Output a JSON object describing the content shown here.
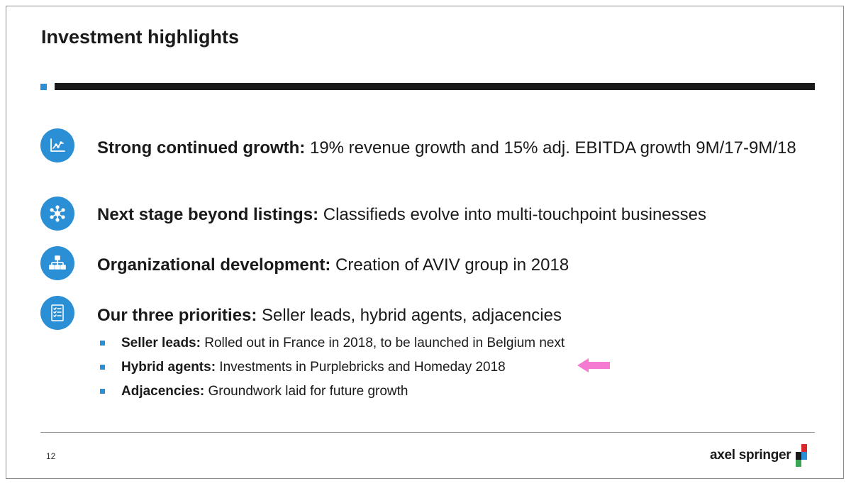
{
  "slide": {
    "title": "Investment highlights",
    "page_number": "12",
    "brand": "axel springer"
  },
  "colors": {
    "accent_blue": "#2b8fd6",
    "rule": "#1a1a1a",
    "arrow": "#f57ad2",
    "logo_red": "#d9272e",
    "logo_green": "#3aa655",
    "logo_blue": "#2b8fd6",
    "logo_black": "#1a1a1a"
  },
  "highlights": [
    {
      "icon": "growth-chart-icon",
      "lead": "Strong continued growth:",
      "text": " 19% revenue growth and 15% adj. EBITDA growth 9M/17-9M/18"
    },
    {
      "icon": "network-nodes-icon",
      "lead": "Next stage beyond listings:",
      "text": " Classifieds evolve into multi-touchpoint businesses"
    },
    {
      "icon": "org-chart-icon",
      "lead": "Organizational development:",
      "text": " Creation of AVIV group in 2018"
    },
    {
      "icon": "checklist-icon",
      "lead": "Our three priorities:",
      "text": " Seller leads, hybrid agents, adjacencies"
    }
  ],
  "priorities": [
    {
      "lead": "Seller leads:",
      "text": " Rolled out in France in 2018, to be launched in Belgium next"
    },
    {
      "lead": "Hybrid agents:",
      "text": " Investments in Purplebricks and Homeday 2018"
    },
    {
      "lead": "Adjacencies:",
      "text": " Groundwork laid for future growth"
    }
  ]
}
